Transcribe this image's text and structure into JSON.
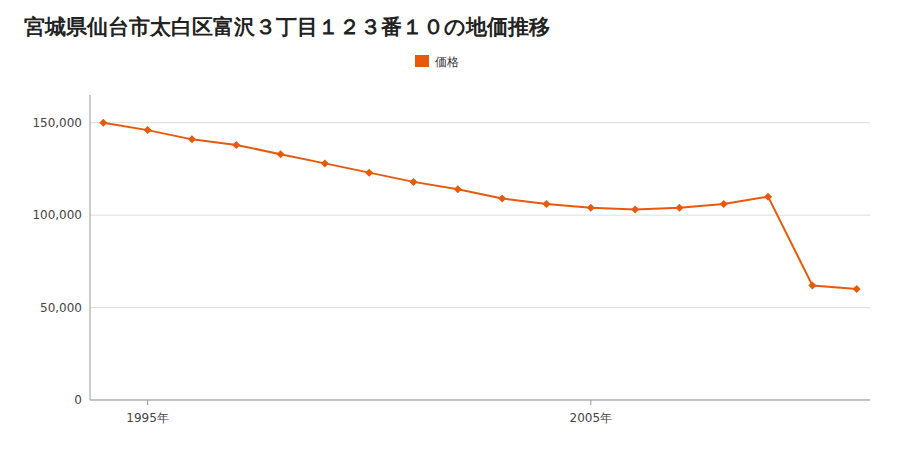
{
  "chart_data": {
    "type": "line",
    "title": "宮城県仙台市太白区富沢３丁目１２３番１０の地価推移",
    "x": [
      1994,
      1995,
      1996,
      1997,
      1998,
      1999,
      2000,
      2001,
      2002,
      2003,
      2004,
      2005,
      2006,
      2007,
      2008,
      2009,
      2010,
      2011
    ],
    "series": [
      {
        "name": "価格",
        "color": "#e8590c",
        "marker": "diamond",
        "line_style": "solid",
        "values": [
          150000,
          146000,
          141000,
          138000,
          133000,
          128000,
          123000,
          118000,
          114000,
          109000,
          106000,
          104000,
          103000,
          104000,
          106000,
          110000,
          62000,
          60000
        ]
      }
    ],
    "xlim": [
      1993.7,
      2011.3
    ],
    "xticks": [
      {
        "value": 1995,
        "label": "1995年"
      },
      {
        "value": 2005,
        "label": "2005年"
      }
    ],
    "ylim": [
      0,
      165000
    ],
    "yticks": [
      0,
      {
        "value": 50000,
        "label": "50,000"
      },
      {
        "value": 100000,
        "label": "100,000"
      },
      {
        "value": 150000,
        "label": "150,000"
      }
    ],
    "grid": true,
    "legend": "top"
  }
}
